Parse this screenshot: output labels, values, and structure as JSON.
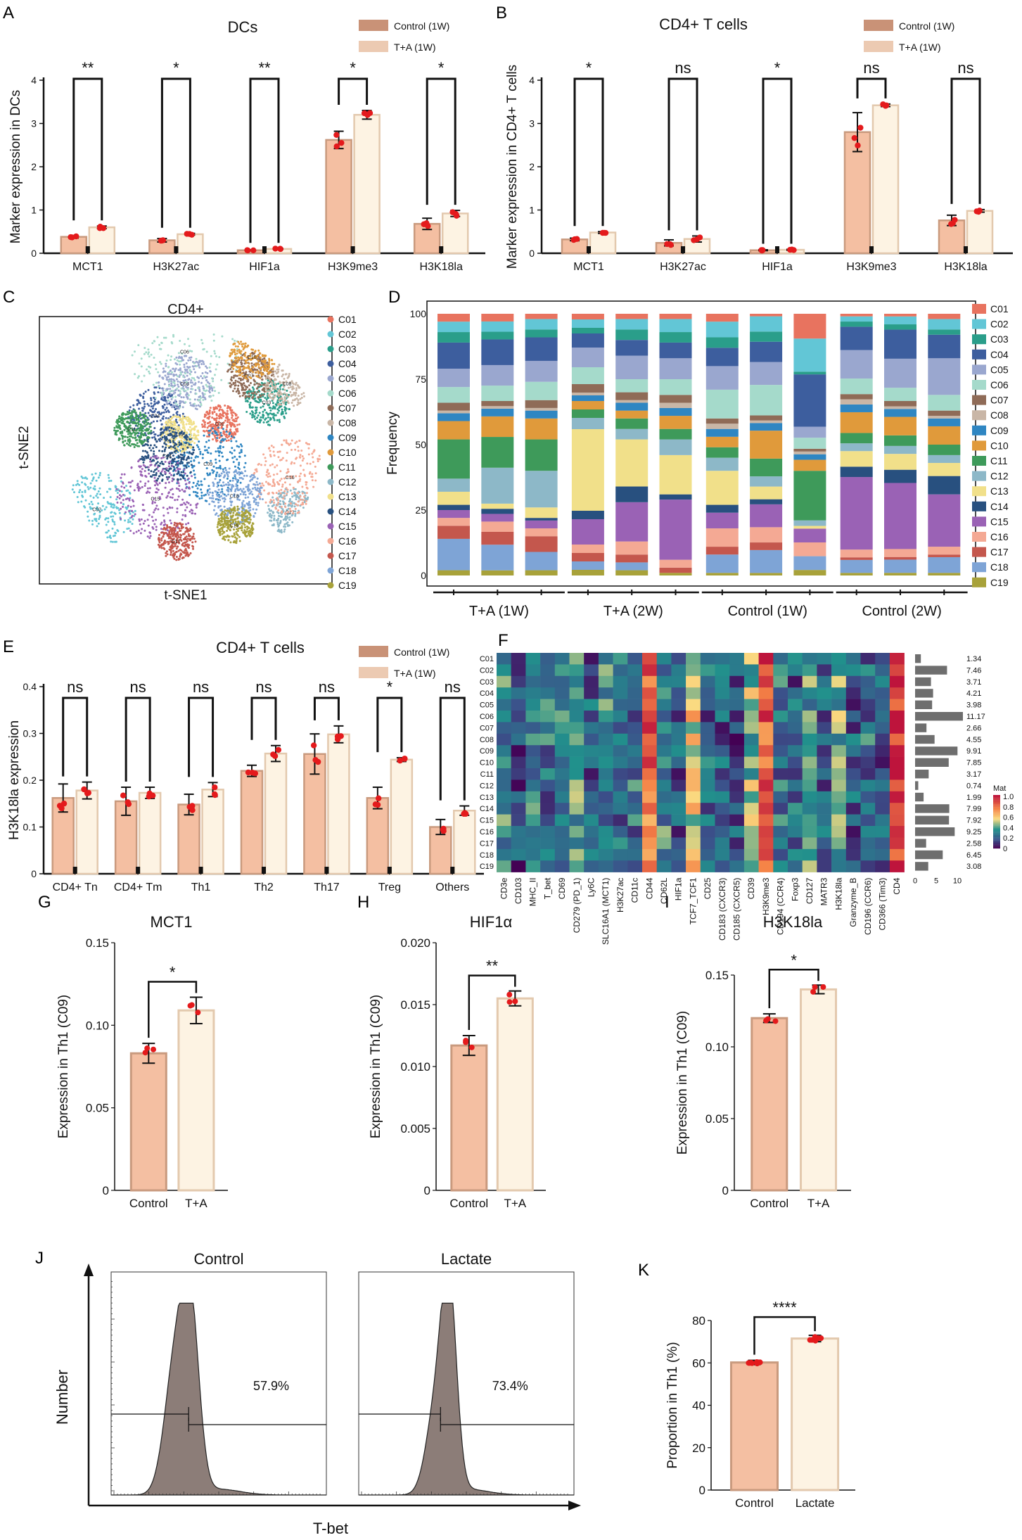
{
  "panels": {
    "A": "A",
    "B": "B",
    "C": "C",
    "D": "D",
    "E": "E",
    "F": "F",
    "G": "G",
    "H": "H",
    "I": "I",
    "J": "J",
    "K": "K"
  },
  "colors": {
    "control_fill": "#f4bfa2",
    "control_edge": "#c99a7e",
    "ta_fill": "#fdf3e3",
    "ta_edge": "#e3c9ae",
    "legend_control": "#c99277",
    "legend_ta": "#eccab2",
    "dot": "#e41a1c",
    "hist_fill": "#8c7d78"
  },
  "chart_data": [
    {
      "id": "A",
      "type": "bar",
      "title": "DCs",
      "ylabel": "Marker expression in DCs",
      "ylim": [
        0,
        4
      ],
      "yticks": [
        "0",
        "1",
        "2",
        "3",
        "4"
      ],
      "categories": [
        "MCT1",
        "H3K27ac",
        "HIF1a",
        "H3K9me3",
        "H3K18la"
      ],
      "series": [
        {
          "name": "Control (1W)",
          "values": [
            0.38,
            0.3,
            0.07,
            2.62,
            0.68
          ],
          "err": [
            0.03,
            0.04,
            0.01,
            0.2,
            0.13
          ]
        },
        {
          "name": "T+A (1W)",
          "values": [
            0.6,
            0.44,
            0.1,
            3.2,
            0.92
          ],
          "err": [
            0.03,
            0.02,
            0.01,
            0.1,
            0.07
          ]
        }
      ],
      "significance": [
        "**",
        "*",
        "**",
        "*",
        "*"
      ]
    },
    {
      "id": "B",
      "type": "bar",
      "title": "CD4+ T cells",
      "ylabel": "Marker expression in CD4+ T cells",
      "ylim": [
        0,
        4
      ],
      "yticks": [
        "0",
        "1",
        "2",
        "3",
        "4"
      ],
      "categories": [
        "MCT1",
        "H3K27ac",
        "HIF1a",
        "H3K9me3",
        "H3K18la"
      ],
      "series": [
        {
          "name": "Control (1W)",
          "values": [
            0.32,
            0.24,
            0.07,
            2.8,
            0.76
          ],
          "err": [
            0.03,
            0.07,
            0.01,
            0.45,
            0.12
          ]
        },
        {
          "name": "T+A (1W)",
          "values": [
            0.48,
            0.33,
            0.08,
            3.42,
            0.98
          ],
          "err": [
            0.02,
            0.07,
            0.01,
            0.03,
            0.03
          ]
        }
      ],
      "significance": [
        "*",
        "ns",
        "*",
        "ns",
        "ns"
      ]
    },
    {
      "id": "C",
      "type": "scatter",
      "title": "CD4+",
      "xlabel": "t-SNE1",
      "ylabel": "t-SNE2",
      "clusters": [
        {
          "name": "C01",
          "color": "#e8735f",
          "center": [
            0.62,
            0.4
          ],
          "spread": 0.04
        },
        {
          "name": "C02",
          "color": "#62c6d6",
          "center": [
            0.2,
            0.72
          ],
          "spread": 0.08
        },
        {
          "name": "C03",
          "color": "#2a9e8a",
          "center": [
            0.78,
            0.32
          ],
          "spread": 0.05
        },
        {
          "name": "C04",
          "color": "#3d5e9e",
          "center": [
            0.4,
            0.37
          ],
          "spread": 0.06
        },
        {
          "name": "C05",
          "color": "#9aa7cf",
          "center": [
            0.5,
            0.25
          ],
          "spread": 0.06
        },
        {
          "name": "C06",
          "color": "#a5dacb",
          "center": [
            0.5,
            0.13
          ],
          "spread": 0.12
        },
        {
          "name": "C07",
          "color": "#8f6b57",
          "center": [
            0.72,
            0.22
          ],
          "spread": 0.05
        },
        {
          "name": "C08",
          "color": "#c9b6a6",
          "center": [
            0.85,
            0.25
          ],
          "spread": 0.05
        },
        {
          "name": "C09",
          "color": "#2f86c2",
          "center": [
            0.58,
            0.55
          ],
          "spread": 0.08
        },
        {
          "name": "C10",
          "color": "#e09a3b",
          "center": [
            0.73,
            0.15
          ],
          "spread": 0.05
        },
        {
          "name": "C11",
          "color": "#3e9a5a",
          "center": [
            0.32,
            0.42
          ],
          "spread": 0.04
        },
        {
          "name": "C12",
          "color": "#8db8c8",
          "center": [
            0.86,
            0.73
          ],
          "spread": 0.05
        },
        {
          "name": "C13",
          "color": "#f1e08a",
          "center": [
            0.48,
            0.44
          ],
          "spread": 0.04
        },
        {
          "name": "C14",
          "color": "#28507f",
          "center": [
            0.44,
            0.52
          ],
          "spread": 0.06
        },
        {
          "name": "C15",
          "color": "#9a62b5",
          "center": [
            0.4,
            0.68
          ],
          "spread": 0.09
        },
        {
          "name": "C16",
          "color": "#f4a994",
          "center": [
            0.86,
            0.6
          ],
          "spread": 0.08
        },
        {
          "name": "C17",
          "color": "#c4574d",
          "center": [
            0.47,
            0.84
          ],
          "spread": 0.04
        },
        {
          "name": "C18",
          "color": "#7ea4d6",
          "center": [
            0.67,
            0.67
          ],
          "spread": 0.06
        },
        {
          "name": "C19",
          "color": "#a8a23a",
          "center": [
            0.67,
            0.78
          ],
          "spread": 0.04
        }
      ]
    },
    {
      "id": "D",
      "type": "bar",
      "stacked": true,
      "ylabel": "Frequency",
      "ylim": [
        0,
        100
      ],
      "yticks": [
        "0",
        "25",
        "50",
        "75",
        "100"
      ],
      "groups": [
        "T+A (1W)",
        "T+A (2W)",
        "Control (1W)",
        "Control (2W)"
      ],
      "samples_per_group": 3,
      "cluster_names": [
        "C01",
        "C02",
        "C03",
        "C04",
        "C05",
        "C06",
        "C07",
        "C08",
        "C09",
        "C10",
        "C11",
        "C12",
        "C13",
        "C14",
        "C15",
        "C16",
        "C17",
        "C18",
        "C19"
      ],
      "cluster_colors": [
        "#e8735f",
        "#62c6d6",
        "#2a9e8a",
        "#3d5e9e",
        "#9aa7cf",
        "#a5dacb",
        "#8f6b57",
        "#c9b6a6",
        "#2f86c2",
        "#e09a3b",
        "#3e9a5a",
        "#8db8c8",
        "#f1e08a",
        "#28507f",
        "#9a62b5",
        "#f4a994",
        "#c4574d",
        "#7ea4d6",
        "#a8a23a"
      ],
      "stack_order_bottom_to_top": [
        "C19",
        "C18",
        "C17",
        "C16",
        "C15",
        "C14",
        "C13",
        "C12",
        "C11",
        "C10",
        "C09",
        "C08",
        "C07",
        "C06",
        "C05",
        "C04",
        "C03",
        "C02",
        "C01"
      ],
      "values": [
        [
          3,
          4,
          4,
          10,
          7,
          6,
          3,
          1,
          3,
          7,
          15,
          5,
          5,
          2,
          3,
          3,
          5,
          12,
          2
        ],
        [
          3,
          4,
          3,
          10,
          8,
          6,
          2,
          1,
          3,
          8,
          12,
          14,
          2,
          2,
          3,
          4,
          5,
          10,
          2
        ],
        [
          2,
          4,
          3,
          9,
          8,
          7,
          3,
          1,
          3,
          8,
          12,
          14,
          4,
          1,
          3,
          3,
          6,
          7,
          2
        ],
        [
          2,
          3,
          2,
          5,
          7,
          6,
          3,
          1,
          2,
          3,
          3,
          4,
          29,
          3,
          9,
          3,
          3,
          3,
          2
        ],
        [
          2,
          4,
          4,
          6,
          9,
          5,
          3,
          1,
          3,
          3,
          4,
          4,
          18,
          6,
          15,
          5,
          3,
          3,
          2
        ],
        [
          2,
          5,
          4,
          6,
          8,
          6,
          3,
          2,
          3,
          5,
          4,
          6,
          15,
          2,
          23,
          3,
          2,
          0,
          1
        ],
        [
          3,
          6,
          4,
          7,
          9,
          11,
          2,
          2,
          3,
          4,
          4,
          5,
          13,
          3,
          6,
          7,
          3,
          7,
          1
        ],
        [
          1,
          6,
          4,
          8,
          9,
          12,
          2,
          1,
          3,
          11,
          7,
          4,
          5,
          2,
          9,
          6,
          3,
          9,
          1
        ],
        [
          9,
          12,
          1,
          19,
          4,
          4,
          1,
          1,
          2,
          4,
          18,
          2,
          1,
          0,
          5,
          5,
          0,
          5,
          2
        ],
        [
          1,
          2,
          2,
          9,
          11,
          6,
          2,
          2,
          3,
          8,
          4,
          3,
          6,
          4,
          28,
          3,
          1,
          5,
          1
        ],
        [
          1,
          3,
          2,
          11,
          11,
          5,
          2,
          1,
          3,
          7,
          4,
          3,
          6,
          5,
          25,
          3,
          1,
          5,
          1
        ],
        [
          2,
          4,
          2,
          9,
          14,
          6,
          2,
          1,
          3,
          7,
          4,
          3,
          5,
          7,
          20,
          3,
          1,
          6,
          1
        ]
      ]
    },
    {
      "id": "E",
      "type": "bar",
      "title": "CD4+ T cells",
      "ylabel": "H3K18la expression",
      "ylim": [
        0,
        0.4
      ],
      "yticks": [
        "0",
        "0.1",
        "0.2",
        "0.3",
        "0.4"
      ],
      "categories": [
        "CD4+ Tn",
        "CD4+ Tm",
        "Th1",
        "Th2",
        "Th17",
        "Treg",
        "Others"
      ],
      "series": [
        {
          "name": "Control (1W)",
          "values": [
            0.162,
            0.155,
            0.148,
            0.22,
            0.256,
            0.162,
            0.1
          ],
          "err": [
            0.03,
            0.03,
            0.022,
            0.012,
            0.043,
            0.023,
            0.016
          ]
        },
        {
          "name": "T+A (1W)",
          "values": [
            0.178,
            0.173,
            0.18,
            0.257,
            0.298,
            0.244,
            0.135
          ],
          "err": [
            0.018,
            0.012,
            0.015,
            0.017,
            0.018,
            0.004,
            0.01
          ]
        }
      ],
      "significance": [
        "ns",
        "ns",
        "ns",
        "ns",
        "ns",
        "*",
        "ns"
      ]
    },
    {
      "id": "F",
      "type": "heatmap",
      "colorbar_title": "Mat",
      "colorbar_ticks": [
        "1.0",
        "0.8",
        "0.6",
        "0.4",
        "0.2",
        "0"
      ],
      "rows": [
        "C01",
        "C02",
        "C03",
        "C04",
        "C05",
        "C06",
        "C07",
        "C08",
        "C09",
        "C10",
        "C11",
        "C12",
        "C13",
        "C14",
        "C15",
        "C16",
        "C17",
        "C18",
        "C19"
      ],
      "columns": [
        "CD3e",
        "CD103",
        "MHC_II",
        "T_bet",
        "CD69",
        "CD279 (PD_1)",
        "Ly6C",
        "SLC16A1 (MCT1)",
        "H3K27ac",
        "CD11c",
        "CD44",
        "CD62L",
        "HIF1a",
        "TCF7_TCF1",
        "CD25",
        "CD183 (CXCR3)",
        "CD185 (CXCR5)",
        "CD39",
        "H3K9me3",
        "CD194 (CCR4)",
        "Foxp3",
        "CD127",
        "MATR3",
        "H3K18la",
        "Granzyme_B",
        "CD196 (CCR6)",
        "CD366 (Tim3)",
        "CD4"
      ],
      "row_values": [
        1.34,
        7.46,
        3.71,
        4.21,
        3.98,
        11.17,
        2.66,
        4.55,
        9.91,
        7.85,
        3.17,
        0.74,
        1.99,
        7.99,
        7.92,
        9.25,
        2.58,
        6.45,
        3.08
      ],
      "row_values_text": [
        "1.34",
        "7.46",
        "3.71",
        "4.21",
        "3.98",
        "11.17",
        "2.66",
        "4.55",
        "9.91",
        "7.85",
        "3.17",
        "0.74",
        "1.99",
        "7.99",
        "7.92",
        "9.25",
        "2.58",
        "6.45",
        "3.08"
      ],
      "bar_axis_ticks": [
        "0",
        "5",
        "10"
      ]
    },
    {
      "id": "G",
      "type": "bar",
      "title": "MCT1",
      "ylabel": "Expression in Th1 (C09)",
      "ylim": [
        0,
        0.15
      ],
      "yticks": [
        "0",
        "0.05",
        "0.10",
        "0.15"
      ],
      "categories": [
        "Control",
        "T+A"
      ],
      "values": [
        0.083,
        0.109
      ],
      "err": [
        0.006,
        0.008
      ],
      "significance": "*"
    },
    {
      "id": "H",
      "type": "bar",
      "title": "HIF1α",
      "ylabel": "Expression in Th1 (C09)",
      "ylim": [
        0,
        0.02
      ],
      "yticks": [
        "0",
        "0.005",
        "0.010",
        "0.015",
        "0.020"
      ],
      "categories": [
        "Control",
        "T+A"
      ],
      "values": [
        0.0117,
        0.0155
      ],
      "err": [
        0.0008,
        0.0006
      ],
      "significance": "**"
    },
    {
      "id": "I",
      "type": "bar",
      "title": "H3K18la",
      "ylabel": "Expression in Th1 (C09)",
      "ylim": [
        0,
        0.15
      ],
      "yticks": [
        "0",
        "0.05",
        "0.10",
        "0.15"
      ],
      "categories": [
        "Control",
        "T+A"
      ],
      "values": [
        0.12,
        0.14
      ],
      "err": [
        0.003,
        0.003
      ],
      "significance": "*"
    },
    {
      "id": "J",
      "type": "area",
      "xlabel": "T-bet",
      "ylabel": "Number",
      "histograms": [
        {
          "name": "Control",
          "gate_percent": "57.9%"
        },
        {
          "name": "Lactate",
          "gate_percent": "73.4%"
        }
      ]
    },
    {
      "id": "K",
      "type": "bar",
      "ylabel": "Proportion in Th1 (%)",
      "ylim": [
        0,
        80
      ],
      "yticks": [
        "0",
        "20",
        "40",
        "60",
        "80"
      ],
      "categories": [
        "Control",
        "Lactate"
      ],
      "values": [
        60.2,
        71.5
      ],
      "err": [
        1.0,
        1.5
      ],
      "significance": "****"
    }
  ]
}
